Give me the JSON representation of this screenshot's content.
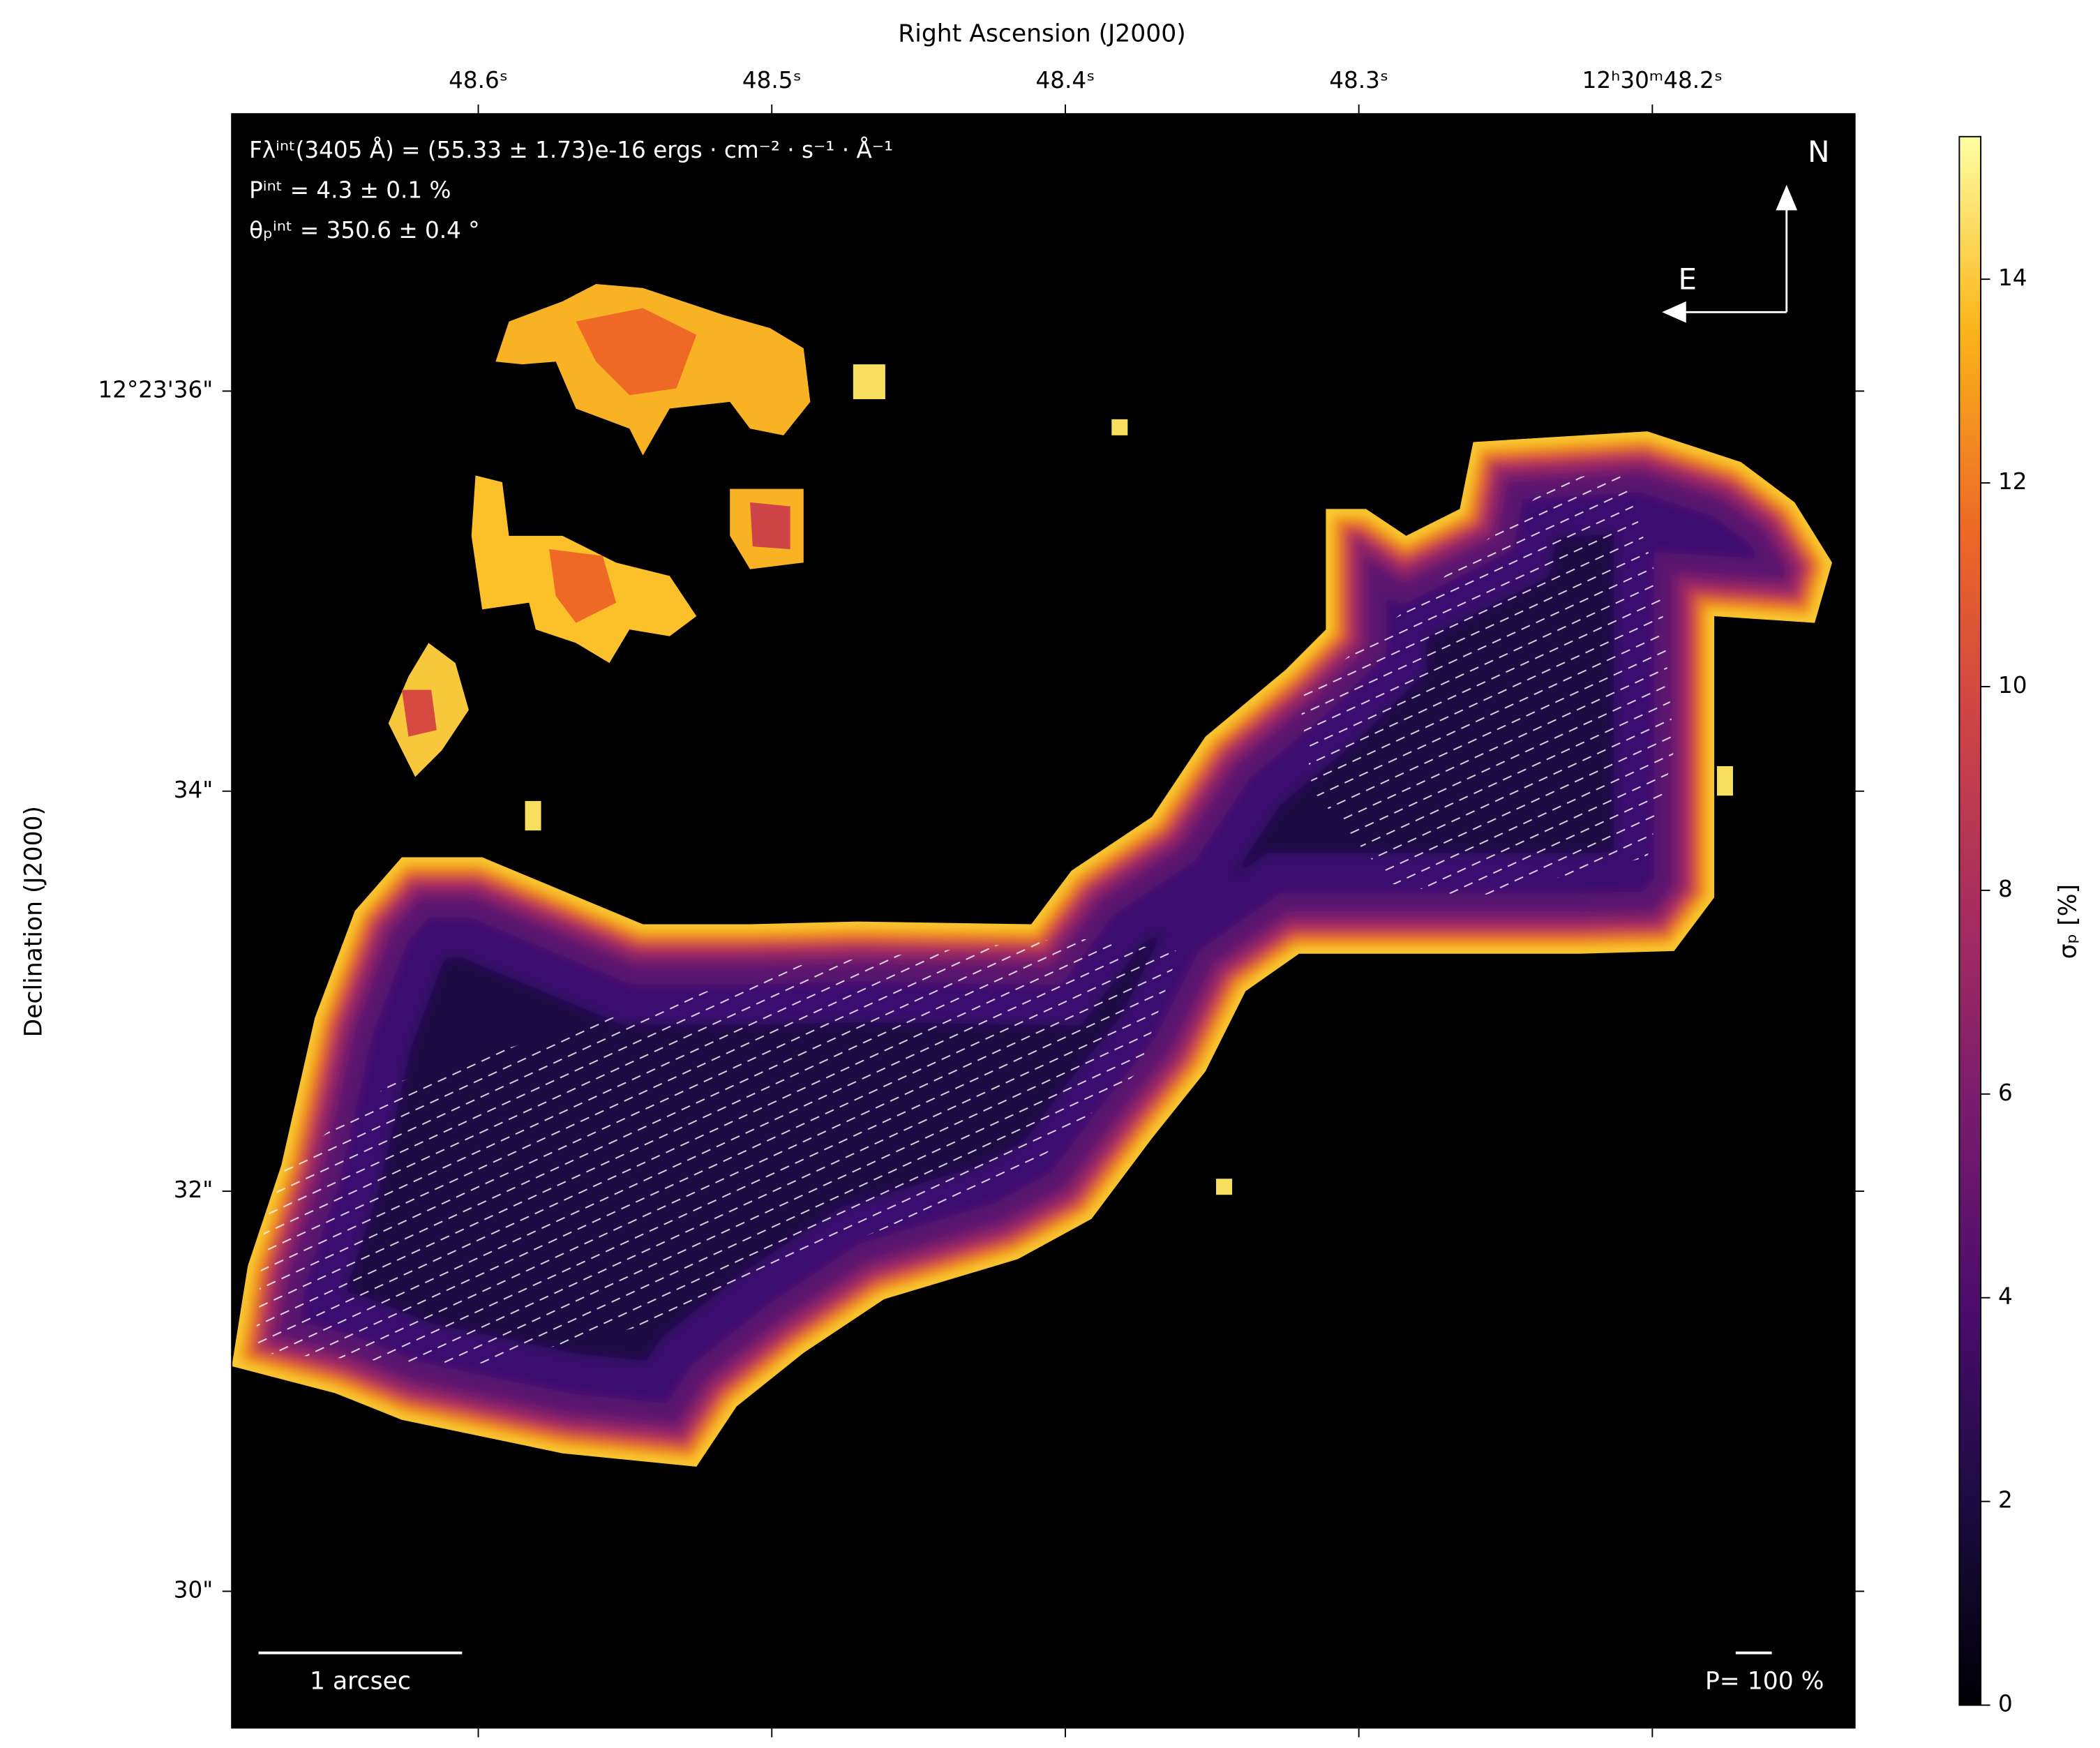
{
  "chart_data": {
    "type": "heatmap",
    "xlabel": "Right Ascension (J2000)",
    "ylabel": "Declination (J2000)",
    "xlim": [
      48.684,
      48.131
    ],
    "xticks": [
      {
        "value": 48.6,
        "label": "48.6ˢ"
      },
      {
        "value": 48.5,
        "label": "48.5ˢ"
      },
      {
        "value": 48.4,
        "label": "48.4ˢ"
      },
      {
        "value": 48.3,
        "label": "48.3ˢ"
      },
      {
        "value": 48.2,
        "label": "12ʰ30ᵐ48.2ˢ"
      }
    ],
    "ylim": [
      29.317,
      37.386
    ],
    "yticks": [
      {
        "value": 36,
        "label": "12°23'36\""
      },
      {
        "value": 34,
        "label": "34\""
      },
      {
        "value": 32,
        "label": "32\""
      },
      {
        "value": 30,
        "label": "30\""
      }
    ],
    "colormap": "inferno",
    "colorbar": {
      "label": "σₚ [%]",
      "clim": [
        0,
        15.4
      ],
      "ticks": [
        0,
        2,
        4,
        6,
        8,
        10,
        12,
        14
      ]
    },
    "annotations": [
      "Fλⁱⁿᵗ(3405 Å) = (55.33 ± 1.73)e-16 ergs · cm⁻² · s⁻¹ · Å⁻¹",
      "Pⁱⁿᵗ = 4.3 ± 0.1 %",
      "θₚⁱⁿᵗ = 350.6 ± 0.4 °"
    ],
    "compass": {
      "north": "N",
      "east": "E"
    },
    "scale_bar": "1 arcsec",
    "vector_scale": "P= 100 %"
  }
}
